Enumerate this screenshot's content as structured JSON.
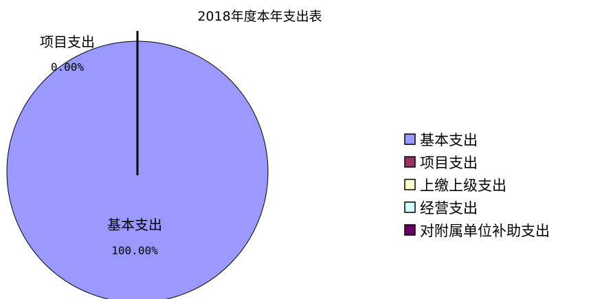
{
  "chart_data": {
    "type": "pie",
    "title": "2018年度本年支出表",
    "slices": [
      {
        "label": "基本支出",
        "value": 100.0,
        "percent_label": "100.00%",
        "color": "#9999ff"
      },
      {
        "label": "项目支出",
        "value": 0.0,
        "percent_label": "0.00%",
        "color": "#993366"
      },
      {
        "label": "上缴上级支出",
        "value": 0,
        "color": "#ffffcc"
      },
      {
        "label": "经营支出",
        "value": 0,
        "color": "#ccffff"
      },
      {
        "label": "对附属单位补助支出",
        "value": 0,
        "color": "#660066"
      }
    ],
    "legend_position": "right"
  }
}
